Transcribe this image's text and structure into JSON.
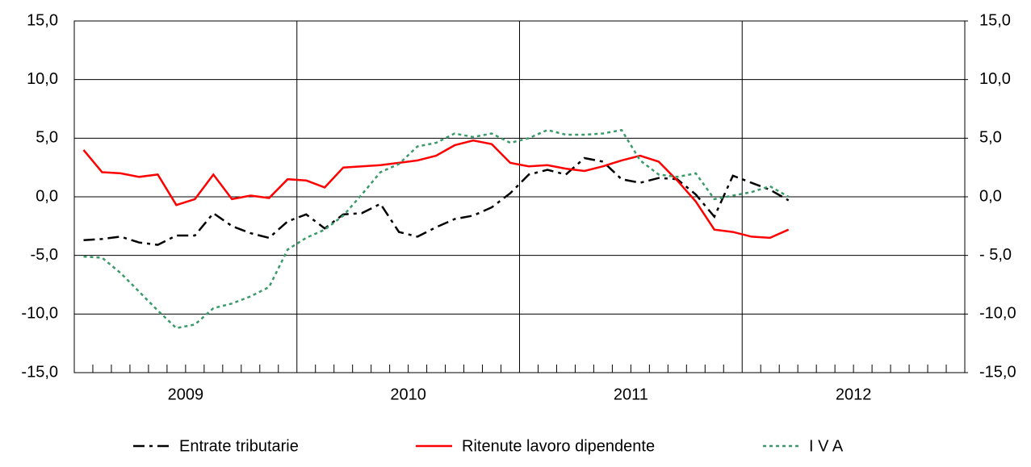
{
  "chart_data": {
    "type": "line",
    "categories": [
      null,
      null,
      null,
      null,
      null,
      "2009",
      null,
      null,
      null,
      null,
      null,
      null,
      null,
      null,
      null,
      null,
      null,
      "2010",
      null,
      null,
      null,
      null,
      null,
      null,
      null,
      null,
      null,
      null,
      null,
      "2011",
      null,
      null,
      null,
      null,
      null,
      null,
      null,
      null,
      null,
      null,
      null,
      "2012",
      null,
      null,
      null,
      null,
      null,
      null
    ],
    "series": [
      {
        "name": "Entrate tributarie",
        "color": "#000000",
        "style": "dashed",
        "values": [
          -3.7,
          -3.6,
          -3.4,
          -3.9,
          -4.1,
          -3.3,
          -3.3,
          -1.4,
          -2.5,
          -3.1,
          -3.5,
          -2.1,
          -1.5,
          -2.7,
          -1.5,
          -1.4,
          -0.6,
          -3.0,
          -3.4,
          -2.6,
          -1.9,
          -1.6,
          -0.9,
          0.3,
          1.9,
          2.3,
          1.9,
          3.3,
          3.0,
          1.5,
          1.2,
          1.6,
          1.5,
          0.2,
          -1.7,
          1.8,
          1.2,
          0.6,
          -0.3,
          null,
          null,
          null,
          null,
          null,
          null,
          null,
          null,
          null
        ]
      },
      {
        "name": "Ritenute lavoro dipendente",
        "color": "#ff0000",
        "style": "solid",
        "values": [
          4.0,
          2.1,
          2.0,
          1.7,
          1.9,
          -0.7,
          -0.2,
          1.9,
          -0.2,
          0.1,
          -0.1,
          1.5,
          1.4,
          0.8,
          2.5,
          2.6,
          2.7,
          2.9,
          3.1,
          3.5,
          4.4,
          4.8,
          4.5,
          2.9,
          2.6,
          2.7,
          2.4,
          2.2,
          2.6,
          3.1,
          3.5,
          3.0,
          1.4,
          -0.4,
          -2.8,
          -3.0,
          -3.4,
          -3.5,
          -2.8,
          null,
          null,
          null,
          null,
          null,
          null,
          null,
          null,
          null
        ]
      },
      {
        "name": "I V A",
        "color": "#3a9a6a",
        "style": "dotted",
        "values": [
          -5.1,
          -5.2,
          -6.5,
          -8.1,
          -9.7,
          -11.2,
          -10.9,
          -9.5,
          -9.1,
          -8.5,
          -7.7,
          -4.5,
          -3.5,
          -2.8,
          -1.6,
          0.2,
          2.1,
          2.8,
          4.3,
          4.6,
          5.4,
          5.1,
          5.4,
          4.6,
          5.0,
          5.7,
          5.3,
          5.3,
          5.4,
          5.7,
          3.1,
          1.9,
          1.7,
          2.0,
          -0.2,
          0.1,
          0.4,
          0.9,
          0.0,
          null,
          null,
          null,
          null,
          null,
          null,
          null,
          null,
          null
        ]
      }
    ],
    "ylim": [
      -15,
      15
    ],
    "yticks": [
      {
        "value": -15,
        "label": "-15,0"
      },
      {
        "value": -10,
        "label": "-10,0"
      },
      {
        "value": -5,
        "label": "-5,0"
      },
      {
        "value": 0,
        "label": "0,0"
      },
      {
        "value": 5,
        "label": "5,0"
      },
      {
        "value": 10,
        "label": "10,0"
      },
      {
        "value": 15,
        "label": "15,0"
      }
    ],
    "y2lim": [
      -15,
      15
    ],
    "y2ticks": [
      {
        "value": -15,
        "label": "-15,0"
      },
      {
        "value": -10,
        "label": "-10,0"
      },
      {
        "value": -5,
        "label": "- 5,0"
      },
      {
        "value": 0,
        "label": "0,0"
      },
      {
        "value": 5,
        "label": "5,0"
      },
      {
        "value": 10,
        "label": "10,0"
      },
      {
        "value": 15,
        "label": "15,0"
      }
    ],
    "grid": true
  }
}
